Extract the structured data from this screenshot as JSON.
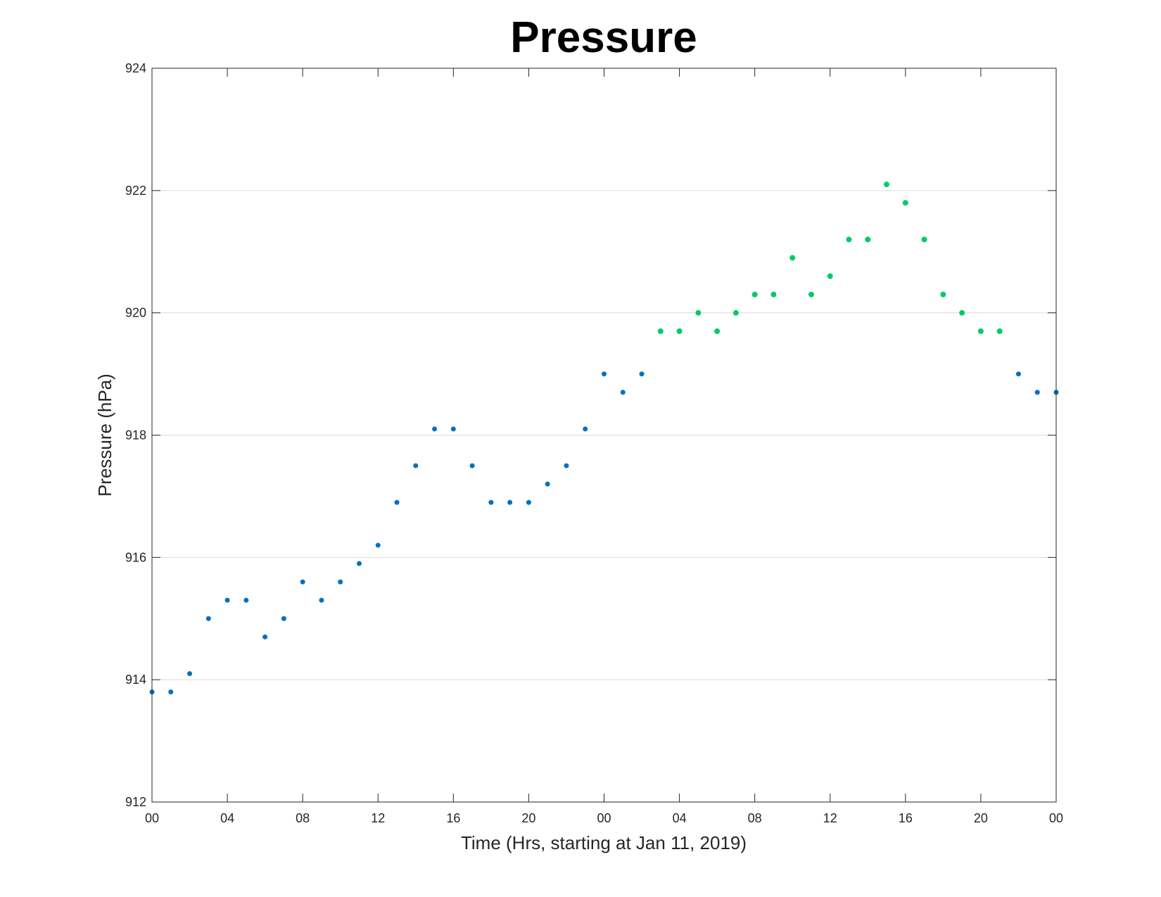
{
  "chart_data": {
    "type": "scatter",
    "title": "Pressure",
    "xlabel": "Time (Hrs, starting at Jan 11, 2019)",
    "ylabel": "Pressure (hPa)",
    "xlim": [
      "2019-01-11 00:00",
      "2019-01-13 00:00"
    ],
    "ylim": [
      912,
      924
    ],
    "x_ticks": [
      {
        "value": "2019-01-11 00:00",
        "label": "00"
      },
      {
        "value": "2019-01-11 04:00",
        "label": "04"
      },
      {
        "value": "2019-01-11 08:00",
        "label": "08"
      },
      {
        "value": "2019-01-11 12:00",
        "label": "12"
      },
      {
        "value": "2019-01-11 16:00",
        "label": "16"
      },
      {
        "value": "2019-01-11 20:00",
        "label": "20"
      },
      {
        "value": "2019-01-12 00:00",
        "label": "00"
      },
      {
        "value": "2019-01-12 04:00",
        "label": "04"
      },
      {
        "value": "2019-01-12 08:00",
        "label": "08"
      },
      {
        "value": "2019-01-12 12:00",
        "label": "12"
      },
      {
        "value": "2019-01-12 16:00",
        "label": "16"
      },
      {
        "value": "2019-01-12 20:00",
        "label": "20"
      },
      {
        "value": "2019-01-13 00:00",
        "label": "00"
      }
    ],
    "y_ticks": [
      912,
      914,
      916,
      918,
      920,
      922,
      924
    ],
    "grid": "horizontal",
    "legend": "none",
    "series": [
      {
        "color": "#0072bd",
        "points": [
          {
            "x": "2019-01-11 00:00",
            "y": 913.8
          },
          {
            "x": "2019-01-11 01:00",
            "y": 913.8
          },
          {
            "x": "2019-01-11 02:00",
            "y": 914.1
          },
          {
            "x": "2019-01-11 03:00",
            "y": 915.0
          },
          {
            "x": "2019-01-11 04:00",
            "y": 915.3
          },
          {
            "x": "2019-01-11 05:00",
            "y": 915.3
          },
          {
            "x": "2019-01-11 06:00",
            "y": 914.7
          },
          {
            "x": "2019-01-11 07:00",
            "y": 915.0
          },
          {
            "x": "2019-01-11 08:00",
            "y": 915.6
          },
          {
            "x": "2019-01-11 09:00",
            "y": 915.3
          },
          {
            "x": "2019-01-11 10:00",
            "y": 915.6
          },
          {
            "x": "2019-01-11 11:00",
            "y": 915.9
          },
          {
            "x": "2019-01-11 12:00",
            "y": 916.2
          },
          {
            "x": "2019-01-11 13:00",
            "y": 916.9
          },
          {
            "x": "2019-01-11 14:00",
            "y": 917.5
          },
          {
            "x": "2019-01-11 15:00",
            "y": 918.1
          },
          {
            "x": "2019-01-11 16:00",
            "y": 918.1
          },
          {
            "x": "2019-01-11 17:00",
            "y": 917.5
          },
          {
            "x": "2019-01-11 18:00",
            "y": 916.9
          },
          {
            "x": "2019-01-11 19:00",
            "y": 916.9
          },
          {
            "x": "2019-01-11 20:00",
            "y": 916.9
          },
          {
            "x": "2019-01-11 21:00",
            "y": 917.2
          },
          {
            "x": "2019-01-11 22:00",
            "y": 917.5
          },
          {
            "x": "2019-01-11 23:00",
            "y": 918.1
          },
          {
            "x": "2019-01-12 00:00",
            "y": 919.0
          },
          {
            "x": "2019-01-12 01:00",
            "y": 918.7
          },
          {
            "x": "2019-01-12 02:00",
            "y": 919.0
          },
          {
            "x": "2019-01-12 22:00",
            "y": 919.0
          },
          {
            "x": "2019-01-12 23:00",
            "y": 918.7
          },
          {
            "x": "2019-01-13 00:00",
            "y": 918.7
          }
        ]
      },
      {
        "color": "#00cc66",
        "points": [
          {
            "x": "2019-01-12 03:00",
            "y": 919.7
          },
          {
            "x": "2019-01-12 04:00",
            "y": 919.7
          },
          {
            "x": "2019-01-12 05:00",
            "y": 920.0
          },
          {
            "x": "2019-01-12 06:00",
            "y": 919.7
          },
          {
            "x": "2019-01-12 07:00",
            "y": 920.0
          },
          {
            "x": "2019-01-12 08:00",
            "y": 920.3
          },
          {
            "x": "2019-01-12 09:00",
            "y": 920.3
          },
          {
            "x": "2019-01-12 10:00",
            "y": 920.9
          },
          {
            "x": "2019-01-12 11:00",
            "y": 920.3
          },
          {
            "x": "2019-01-12 12:00",
            "y": 920.6
          },
          {
            "x": "2019-01-12 13:00",
            "y": 921.2
          },
          {
            "x": "2019-01-12 14:00",
            "y": 921.2
          },
          {
            "x": "2019-01-12 15:00",
            "y": 922.1
          },
          {
            "x": "2019-01-12 16:00",
            "y": 921.8
          },
          {
            "x": "2019-01-12 17:00",
            "y": 921.2
          },
          {
            "x": "2019-01-12 18:00",
            "y": 920.3
          },
          {
            "x": "2019-01-12 19:00",
            "y": 920.0
          },
          {
            "x": "2019-01-12 20:00",
            "y": 919.7
          },
          {
            "x": "2019-01-12 21:00",
            "y": 919.7
          }
        ]
      }
    ]
  }
}
